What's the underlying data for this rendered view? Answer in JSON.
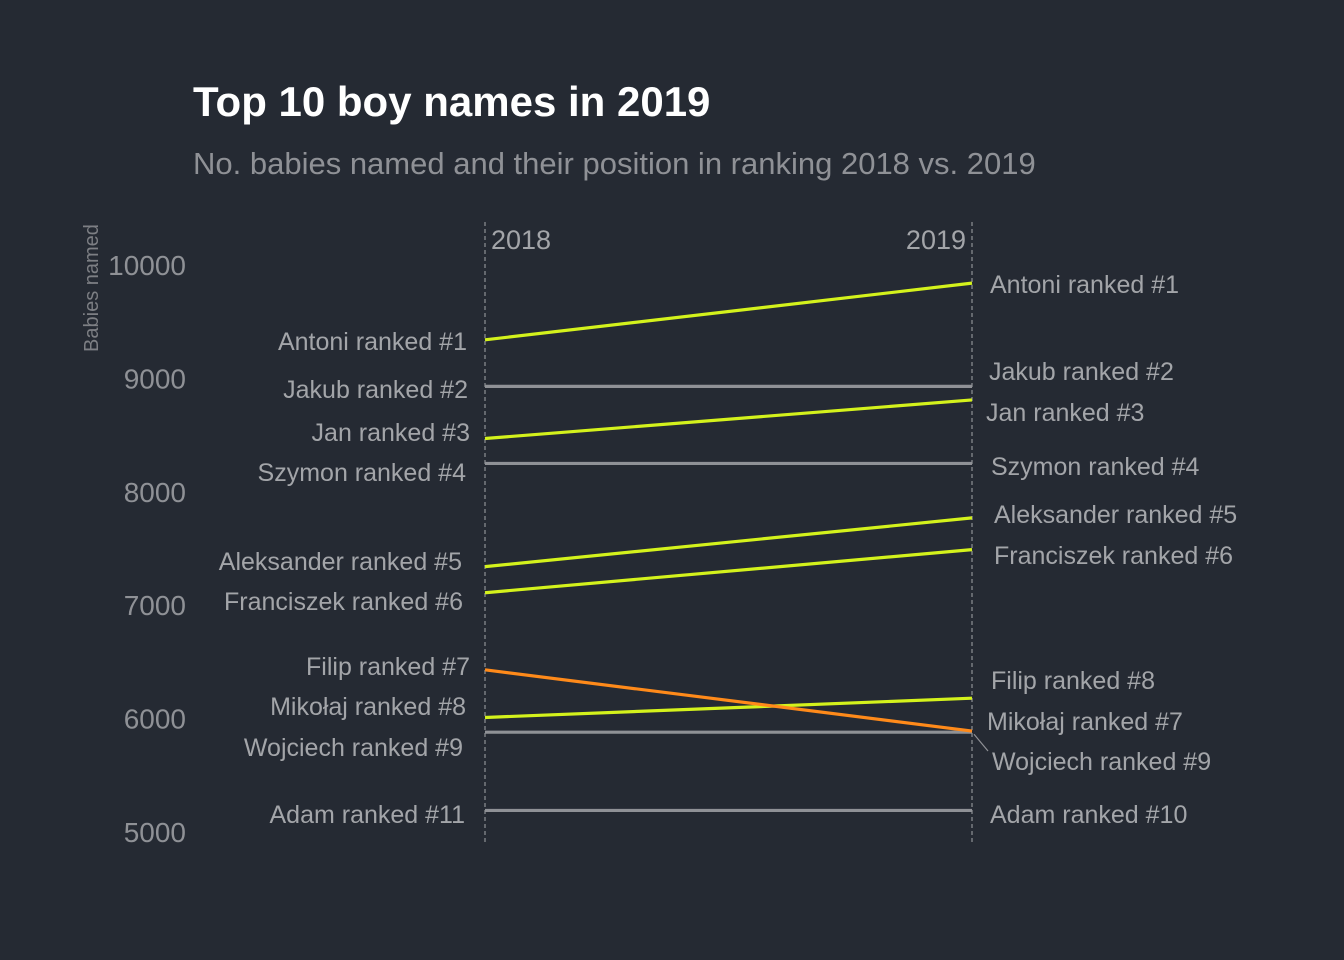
{
  "chart_data": {
    "type": "line",
    "title": "Top 10 boy names in 2019",
    "subtitle": "No. babies named and their position in ranking 2018 vs. 2019",
    "ylabel": "Babies named",
    "ylim": [
      5000,
      10000
    ],
    "yticks": [
      "10000",
      "9000",
      "8000",
      "7000",
      "6000",
      "5000"
    ],
    "x": [
      "2018",
      "2019"
    ],
    "colors": {
      "up": "#d4f21c",
      "same": "#8f9196",
      "down": "#ff8a1a",
      "background": "#252a33"
    },
    "series": [
      {
        "name": "Antoni",
        "values": [
          9340,
          9840
        ],
        "trend": "up",
        "labels": [
          "Antoni ranked #1",
          "Antoni ranked #1"
        ]
      },
      {
        "name": "Jakub",
        "values": [
          8930,
          8930
        ],
        "trend": "same",
        "labels": [
          "Jakub ranked #2",
          "Jakub ranked #2"
        ]
      },
      {
        "name": "Jan",
        "values": [
          8470,
          8810
        ],
        "trend": "up",
        "labels": [
          "Jan ranked #3",
          "Jan ranked #3"
        ]
      },
      {
        "name": "Szymon",
        "values": [
          8250,
          8250
        ],
        "trend": "same",
        "labels": [
          "Szymon ranked #4",
          "Szymon ranked #4"
        ]
      },
      {
        "name": "Aleksander",
        "values": [
          7340,
          7770
        ],
        "trend": "up",
        "labels": [
          "Aleksander ranked #5",
          "Aleksander ranked #5"
        ]
      },
      {
        "name": "Franciszek",
        "values": [
          7110,
          7490
        ],
        "trend": "up",
        "labels": [
          "Franciszek ranked #6",
          "Franciszek ranked #6"
        ]
      },
      {
        "name": "Filip",
        "values": [
          6430,
          5890
        ],
        "trend": "down",
        "labels": [
          "Filip ranked #7",
          "Filip ranked #8"
        ]
      },
      {
        "name": "Mikołaj",
        "values": [
          6010,
          6180
        ],
        "trend": "up",
        "labels": [
          "Mikołaj ranked #8",
          "Mikołaj ranked #7"
        ]
      },
      {
        "name": "Wojciech",
        "values": [
          5880,
          5880
        ],
        "trend": "same",
        "labels": [
          "Wojciech ranked #9",
          "Wojciech ranked #9"
        ]
      },
      {
        "name": "Adam",
        "values": [
          5190,
          5190
        ],
        "trend": "same",
        "labels": [
          "Adam ranked #11",
          "Adam ranked #10"
        ]
      }
    ]
  }
}
